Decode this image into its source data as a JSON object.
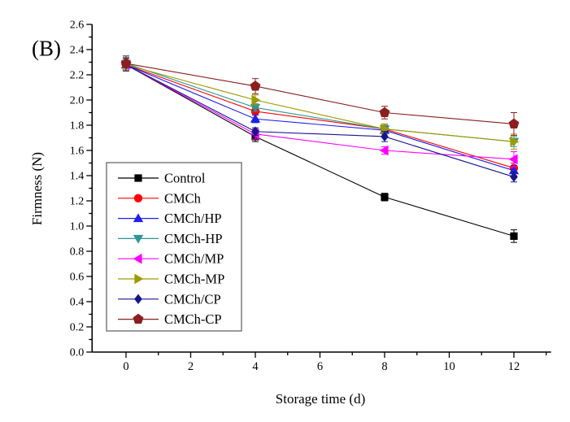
{
  "figure": {
    "background": "#ffffff",
    "text_color": "#000000"
  },
  "chart_data": {
    "type": "line",
    "panel_label": "(B)",
    "title": "",
    "xlabel": "Storage time (d)",
    "ylabel": "Firmness (N)",
    "x": [
      0,
      4,
      8,
      12
    ],
    "xlim": [
      -1.05,
      13.15
    ],
    "ylim": [
      0.0,
      2.6
    ],
    "x_major_ticks": [
      0,
      2,
      4,
      6,
      8,
      10,
      12
    ],
    "x_minor_ticks": [
      1,
      3,
      5,
      7,
      9,
      11,
      13
    ],
    "y_major_step": 0.2,
    "y_minor_step": 0.1,
    "grid": false,
    "error_bars": true,
    "legend_position": "inside-left",
    "series": [
      {
        "name": "Control",
        "color": "#000000",
        "marker": "square",
        "values": [
          2.28,
          1.71,
          1.23,
          0.92
        ],
        "errors": [
          0.05,
          0.04,
          0.03,
          0.05
        ]
      },
      {
        "name": "CMCh",
        "color": "#ff0000",
        "marker": "circle",
        "values": [
          2.28,
          1.91,
          1.77,
          1.46
        ],
        "errors": [
          0.05,
          0.03,
          0.03,
          0.04
        ]
      },
      {
        "name": "CMCh/HP",
        "color": "#2020e6",
        "marker": "triangle-up",
        "values": [
          2.28,
          1.85,
          1.76,
          1.44
        ],
        "errors": [
          0.05,
          0.03,
          0.03,
          0.04
        ]
      },
      {
        "name": "CMCh-HP",
        "color": "#2e9494",
        "marker": "triangle-down",
        "values": [
          2.29,
          1.94,
          1.77,
          1.67
        ],
        "errors": [
          0.05,
          0.03,
          0.04,
          0.04
        ]
      },
      {
        "name": "CMCh/MP",
        "color": "#ff00ff",
        "marker": "triangle-left",
        "values": [
          2.28,
          1.73,
          1.6,
          1.53
        ],
        "errors": [
          0.05,
          0.04,
          0.03,
          0.06
        ]
      },
      {
        "name": "CMCh-MP",
        "color": "#9b9b00",
        "marker": "triangle-right",
        "values": [
          2.28,
          2.0,
          1.77,
          1.67
        ],
        "errors": [
          0.05,
          0.04,
          0.04,
          0.06
        ]
      },
      {
        "name": "CMCh/CP",
        "color": "#16168c",
        "marker": "diamond",
        "values": [
          2.28,
          1.75,
          1.71,
          1.39
        ],
        "errors": [
          0.05,
          0.03,
          0.04,
          0.04
        ]
      },
      {
        "name": "CMCh-CP",
        "color": "#8b1e1e",
        "marker": "pentagon",
        "values": [
          2.29,
          2.11,
          1.9,
          1.81
        ],
        "errors": [
          0.06,
          0.06,
          0.05,
          0.09
        ]
      }
    ]
  }
}
